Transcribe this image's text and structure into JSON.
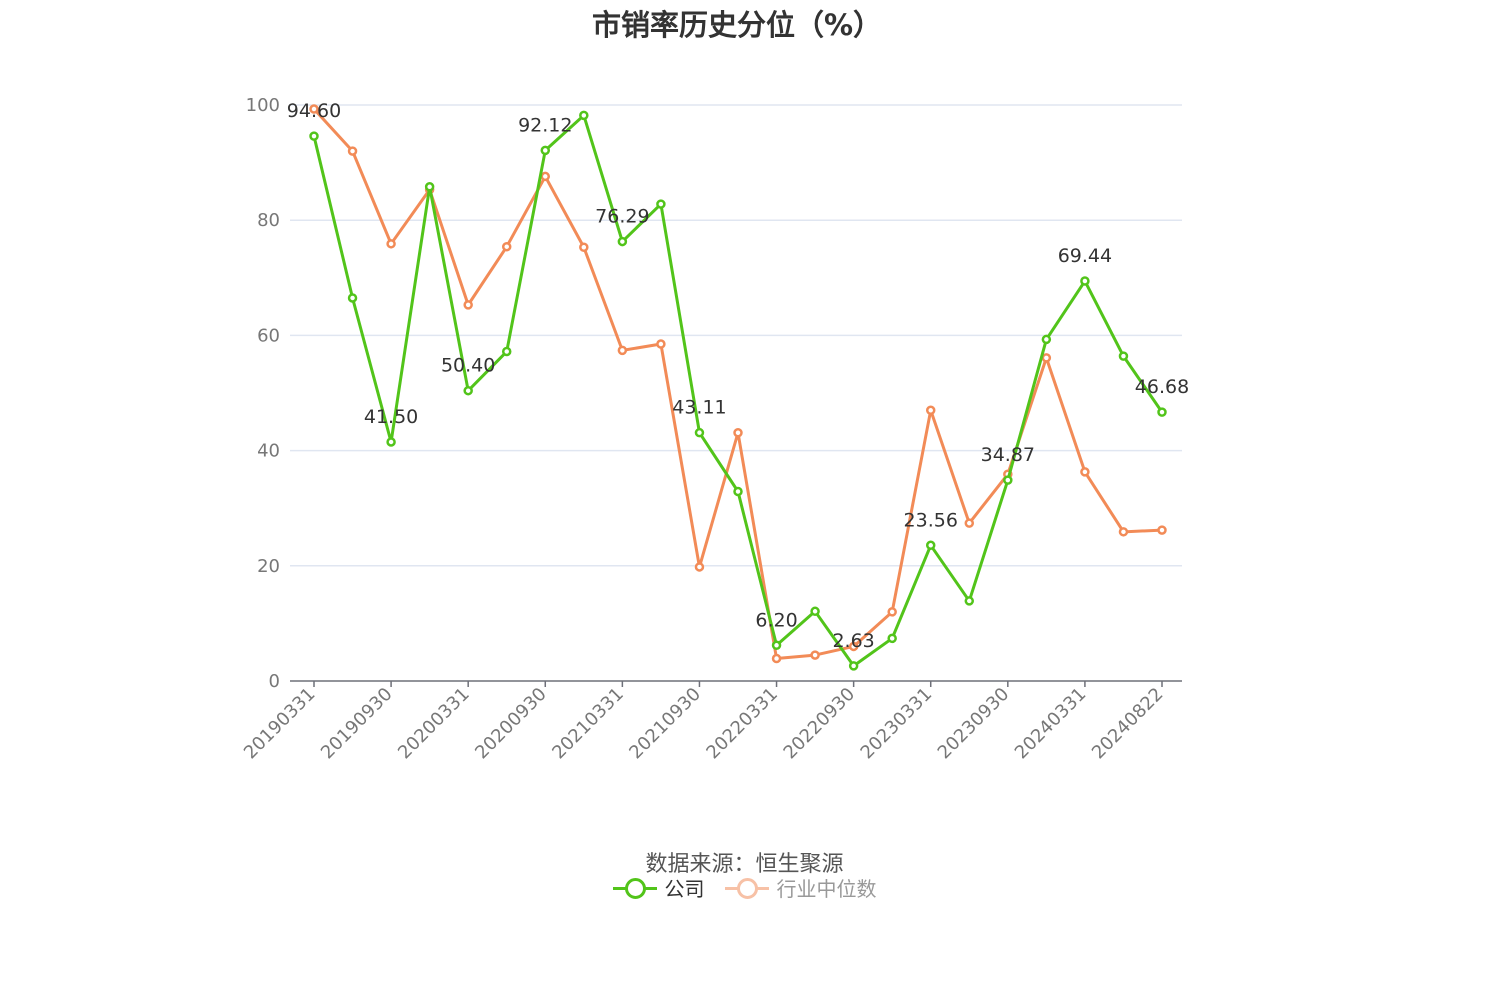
{
  "source_note": "数据来源：恒生聚源",
  "chart_data": {
    "type": "line",
    "title": "市销率历史分位（%）",
    "ylim": [
      0,
      100
    ],
    "yticks": [
      0,
      20,
      40,
      60,
      80,
      100
    ],
    "x": [
      "20190331",
      "20190630",
      "20190930",
      "20191231",
      "20200331",
      "20200630",
      "20200930",
      "20201231",
      "20210331",
      "20210630",
      "20210930",
      "20211231",
      "20220331",
      "20220630",
      "20220930",
      "20221231",
      "20230331",
      "20230630",
      "20230930",
      "20231231",
      "20240331",
      "20240630",
      "20240822"
    ],
    "x_tick_labels": [
      "20190331",
      "20190930",
      "20200331",
      "20200930",
      "20210331",
      "20210930",
      "20220331",
      "20220930",
      "20230331",
      "20230930",
      "20240331",
      "20240822"
    ],
    "series": [
      {
        "name": "公司",
        "color": "#52c41a",
        "values": [
          94.6,
          66.5,
          41.5,
          85.8,
          50.4,
          57.2,
          92.12,
          98.2,
          76.29,
          82.8,
          43.11,
          32.9,
          6.2,
          12.1,
          2.63,
          7.4,
          23.56,
          13.9,
          34.87,
          59.3,
          69.44,
          56.4,
          46.68
        ],
        "labels": [
          "94.60",
          null,
          "41.50",
          null,
          "50.40",
          null,
          "92.12",
          null,
          "76.29",
          null,
          "43.11",
          null,
          "6.20",
          null,
          "2.63",
          null,
          "23.56",
          null,
          "34.87",
          null,
          "69.44",
          null,
          "46.68"
        ]
      },
      {
        "name": "行业中位数",
        "color": "#f28b57",
        "values": [
          99.3,
          92.0,
          75.9,
          85.3,
          65.3,
          75.4,
          87.6,
          75.3,
          57.4,
          58.5,
          19.8,
          43.1,
          3.9,
          4.5,
          6.0,
          12.0,
          47.0,
          27.4,
          35.9,
          56.1,
          36.3,
          25.9,
          26.2
        ]
      }
    ],
    "grid": true,
    "legend_position": "bottom"
  }
}
